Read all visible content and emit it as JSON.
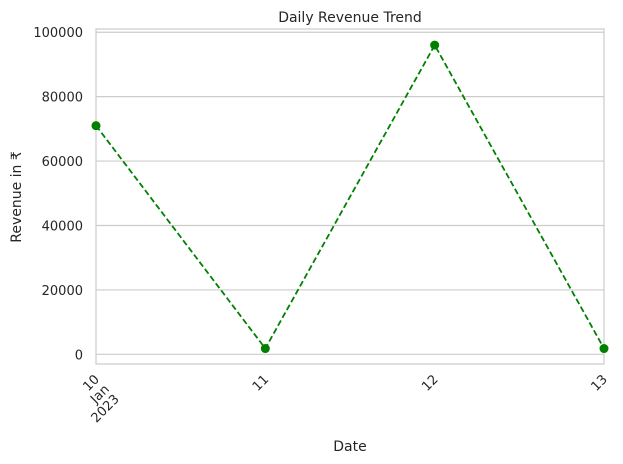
{
  "chart_data": {
    "type": "line",
    "title": "Daily Revenue Trend",
    "xlabel": "Date",
    "ylabel": "Revenue in ₹",
    "x": [
      "2023-01-10",
      "2023-01-11",
      "2023-01-12",
      "2023-01-13"
    ],
    "x_tick_labels": [
      "10\nJan\n2023",
      "11",
      "12",
      "13"
    ],
    "series": [
      {
        "values": [
          71000,
          1800,
          96000,
          1800
        ],
        "color": "#008000",
        "linestyle": "dashed",
        "marker": "circle"
      }
    ],
    "ylim": [
      -3000,
      101000
    ],
    "y_ticks": [
      0,
      20000,
      40000,
      60000,
      80000,
      100000
    ],
    "grid": "horizontal",
    "legend": "none"
  }
}
